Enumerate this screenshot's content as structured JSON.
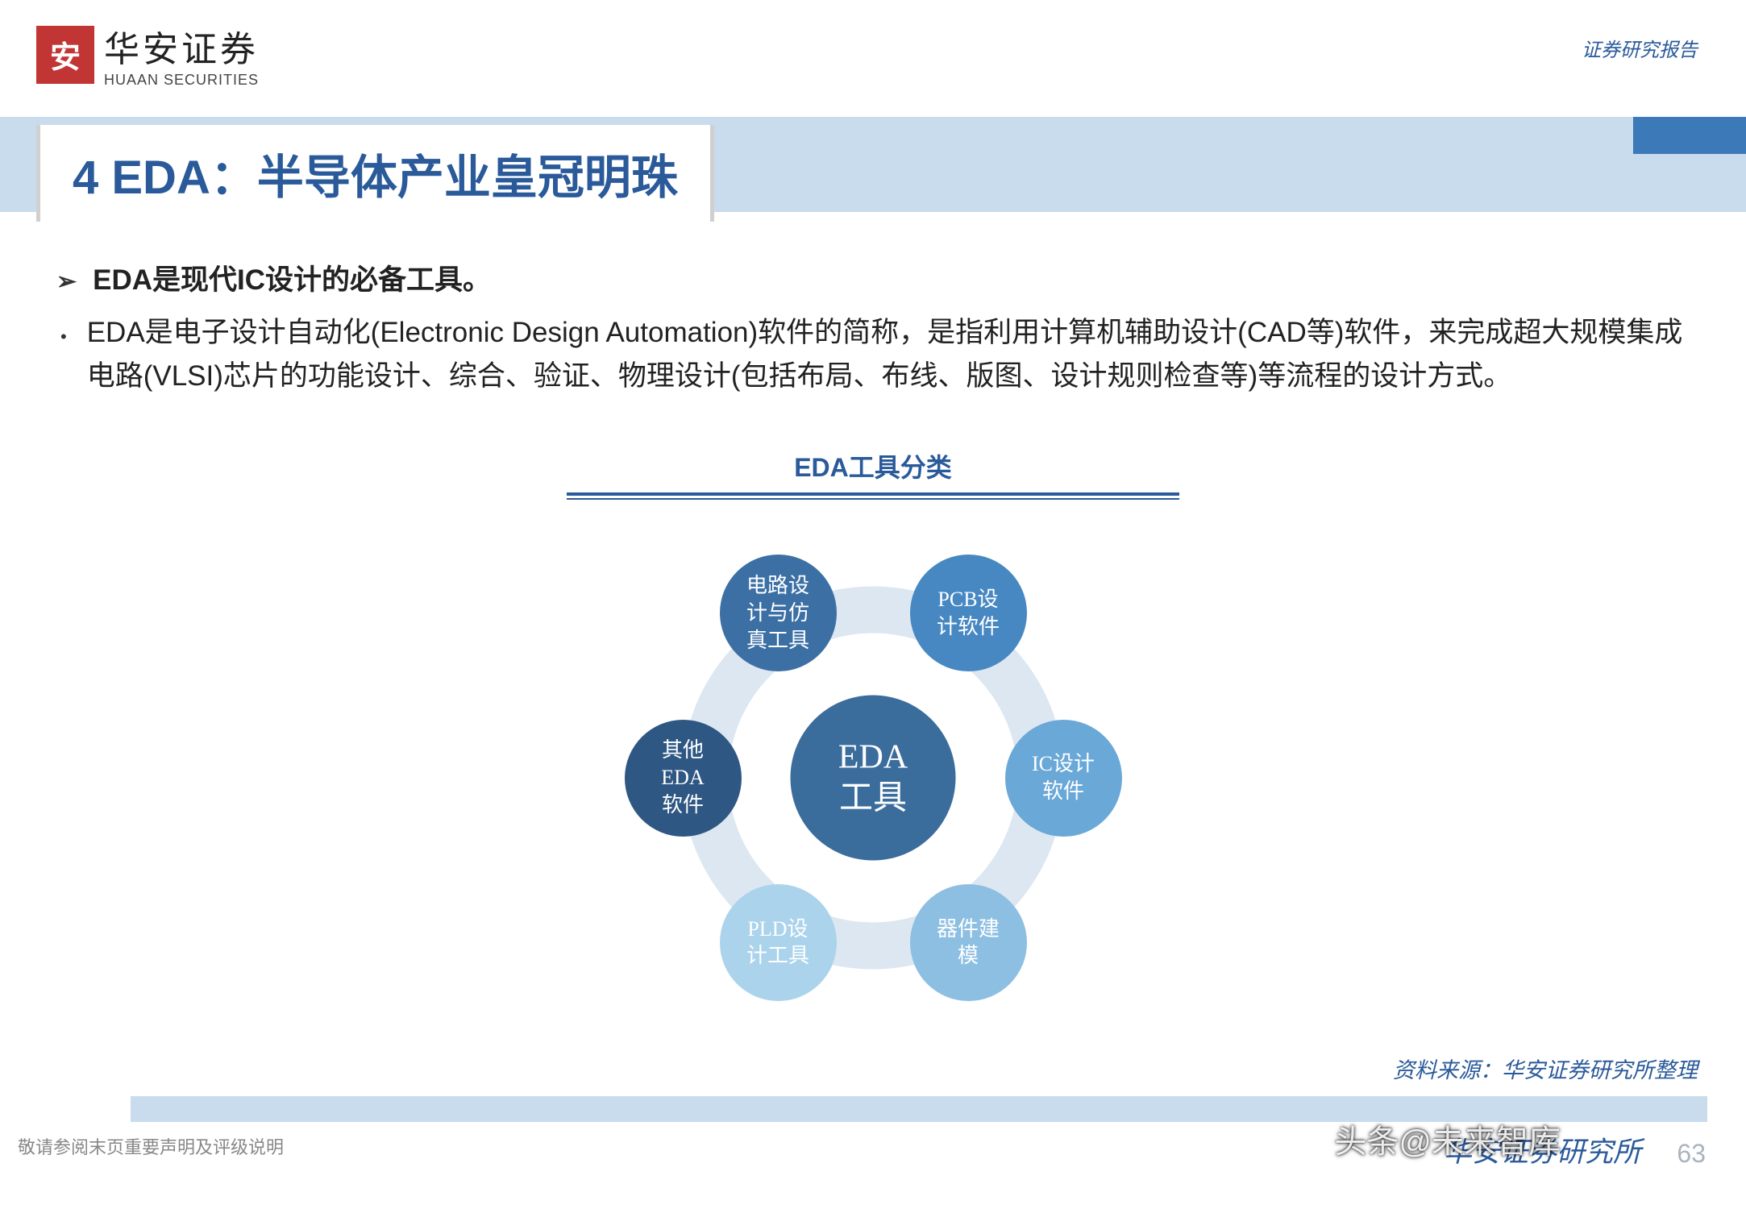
{
  "header": {
    "logo_char": "安",
    "company_cn": "华安证券",
    "company_en": "HUAAN SECURITIES",
    "report_type": "证券研究报告"
  },
  "title": "4 EDA：半导体产业皇冠明珠",
  "bullets": {
    "head": "EDA是现代IC设计的必备工具。",
    "body": "EDA是电子设计自动化(Electronic Design Automation)软件的简称，是指利用计算机辅助设计(CAD等)软件，来完成超大规模集成电路(VLSI)芯片的功能设计、综合、验证、物理设计(包括布局、布线、版图、设计规则检查等)等流程的设计方式。"
  },
  "diagram": {
    "title": "EDA工具分类",
    "center": {
      "label": "EDA\n工具",
      "color": "#3b6d9c"
    },
    "ring_color": "#dce7f1",
    "nodes": [
      {
        "label": "电路设\n计与仿\n真工具",
        "color": "#3c70a5",
        "angle": -120
      },
      {
        "label": "PCB设\n计软件",
        "color": "#4788c2",
        "angle": -60
      },
      {
        "label": "IC设计\n软件",
        "color": "#6aa8d8",
        "angle": 0
      },
      {
        "label": "器件建\n模",
        "color": "#8dbfe3",
        "angle": 60
      },
      {
        "label": "PLD设\n计工具",
        "color": "#abd3ec",
        "angle": 120
      },
      {
        "label": "其他\nEDA\n软件",
        "color": "#2e5783",
        "angle": 180
      }
    ],
    "orbit_radius": 236
  },
  "source": "资料来源：华安证券研究所整理",
  "footer": {
    "disclaimer": "敬请参阅末页重要声明及评级说明",
    "org": "华安证券研究所",
    "page": "63",
    "watermark": "头条@未来智库"
  },
  "colors": {
    "brand_blue": "#2a5a9a",
    "light_blue": "#c8dced",
    "logo_red": "#c23535"
  }
}
